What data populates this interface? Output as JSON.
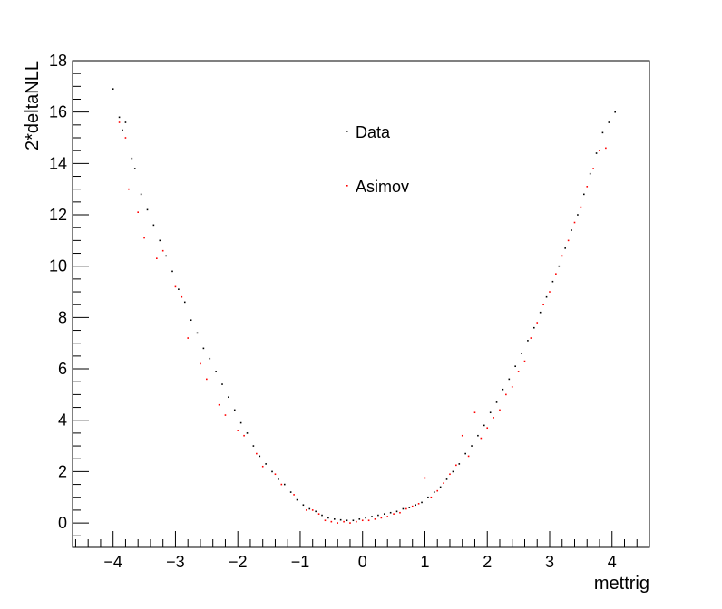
{
  "chart_data": {
    "type": "scatter",
    "title": "",
    "xlabel": "mettrig",
    "ylabel": "2*deltaNLL",
    "xlim": [
      -4.65,
      4.6
    ],
    "ylim": [
      -0.95,
      18
    ],
    "xticks": [
      -4,
      -3,
      -2,
      -1,
      0,
      1,
      2,
      3,
      4
    ],
    "xtick_labels": [
      "−4",
      "−3",
      "−2",
      "−1",
      "0",
      "1",
      "2",
      "3",
      "4"
    ],
    "yticks": [
      0,
      2,
      4,
      6,
      8,
      10,
      12,
      14,
      16,
      18
    ],
    "ytick_labels": [
      "0",
      "2",
      "4",
      "6",
      "8",
      "10",
      "12",
      "14",
      "16",
      "18"
    ],
    "grid": false,
    "legend_position": "top-center",
    "series": [
      {
        "name": "Data",
        "color": "#000000",
        "points": [
          [
            -4.0,
            16.9
          ],
          [
            -3.9,
            15.8
          ],
          [
            -3.85,
            15.3
          ],
          [
            -3.8,
            15.6
          ],
          [
            -3.7,
            14.2
          ],
          [
            -3.65,
            13.8
          ],
          [
            -3.55,
            12.8
          ],
          [
            -3.45,
            12.2
          ],
          [
            -3.35,
            11.6
          ],
          [
            -3.25,
            11.0
          ],
          [
            -3.15,
            10.4
          ],
          [
            -3.05,
            9.8
          ],
          [
            -2.95,
            9.1
          ],
          [
            -2.85,
            8.6
          ],
          [
            -2.75,
            7.9
          ],
          [
            -2.65,
            7.4
          ],
          [
            -2.55,
            6.8
          ],
          [
            -2.45,
            6.4
          ],
          [
            -2.35,
            5.9
          ],
          [
            -2.25,
            5.4
          ],
          [
            -2.15,
            4.9
          ],
          [
            -2.05,
            4.4
          ],
          [
            -1.95,
            3.9
          ],
          [
            -1.85,
            3.5
          ],
          [
            -1.75,
            3.0
          ],
          [
            -1.65,
            2.6
          ],
          [
            -1.55,
            2.3
          ],
          [
            -1.45,
            2.0
          ],
          [
            -1.35,
            1.7
          ],
          [
            -1.25,
            1.5
          ],
          [
            -1.15,
            1.2
          ],
          [
            -1.05,
            0.9
          ],
          [
            -0.95,
            0.7
          ],
          [
            -0.85,
            0.55
          ],
          [
            -0.75,
            0.45
          ],
          [
            -0.65,
            0.3
          ],
          [
            -0.55,
            0.2
          ],
          [
            -0.45,
            0.15
          ],
          [
            -0.35,
            0.12
          ],
          [
            -0.25,
            0.1
          ],
          [
            -0.15,
            0.1
          ],
          [
            -0.05,
            0.15
          ],
          [
            0.05,
            0.2
          ],
          [
            0.15,
            0.25
          ],
          [
            0.25,
            0.3
          ],
          [
            0.35,
            0.35
          ],
          [
            0.45,
            0.4
          ],
          [
            0.55,
            0.45
          ],
          [
            0.65,
            0.55
          ],
          [
            0.75,
            0.6
          ],
          [
            0.85,
            0.7
          ],
          [
            0.95,
            0.8
          ],
          [
            1.05,
            1.0
          ],
          [
            1.15,
            1.2
          ],
          [
            1.25,
            1.4
          ],
          [
            1.35,
            1.7
          ],
          [
            1.45,
            2.0
          ],
          [
            1.55,
            2.3
          ],
          [
            1.65,
            2.7
          ],
          [
            1.75,
            3.0
          ],
          [
            1.85,
            3.4
          ],
          [
            1.95,
            3.8
          ],
          [
            2.05,
            4.3
          ],
          [
            2.15,
            4.7
          ],
          [
            2.25,
            5.2
          ],
          [
            2.35,
            5.6
          ],
          [
            2.45,
            6.1
          ],
          [
            2.55,
            6.6
          ],
          [
            2.65,
            7.1
          ],
          [
            2.75,
            7.6
          ],
          [
            2.85,
            8.2
          ],
          [
            2.95,
            8.8
          ],
          [
            3.05,
            9.4
          ],
          [
            3.15,
            10.0
          ],
          [
            3.25,
            10.7
          ],
          [
            3.35,
            11.4
          ],
          [
            3.45,
            12.0
          ],
          [
            3.55,
            12.8
          ],
          [
            3.65,
            13.6
          ],
          [
            3.75,
            14.4
          ],
          [
            3.85,
            15.2
          ],
          [
            3.95,
            15.6
          ],
          [
            4.05,
            16.0
          ]
        ]
      },
      {
        "name": "Asimov",
        "color": "#ff0000",
        "points": [
          [
            -3.9,
            15.6
          ],
          [
            -3.8,
            15.0
          ],
          [
            -3.75,
            13.0
          ],
          [
            -3.6,
            12.1
          ],
          [
            -3.5,
            11.1
          ],
          [
            -3.3,
            10.3
          ],
          [
            -3.2,
            10.6
          ],
          [
            -3.0,
            9.2
          ],
          [
            -2.9,
            8.8
          ],
          [
            -2.8,
            7.2
          ],
          [
            -2.6,
            6.2
          ],
          [
            -2.5,
            5.6
          ],
          [
            -2.3,
            4.6
          ],
          [
            -2.2,
            4.2
          ],
          [
            -2.0,
            3.6
          ],
          [
            -1.9,
            3.4
          ],
          [
            -1.7,
            2.7
          ],
          [
            -1.6,
            2.2
          ],
          [
            -1.4,
            1.9
          ],
          [
            -1.3,
            1.5
          ],
          [
            -1.1,
            1.1
          ],
          [
            -0.9,
            0.5
          ],
          [
            -0.8,
            0.5
          ],
          [
            -0.7,
            0.35
          ],
          [
            -0.6,
            0.1
          ],
          [
            -0.5,
            0.05
          ],
          [
            -0.4,
            0.0
          ],
          [
            -0.3,
            0.05
          ],
          [
            -0.2,
            0.0
          ],
          [
            -0.1,
            0.05
          ],
          [
            0.0,
            0.1
          ],
          [
            0.1,
            0.1
          ],
          [
            0.2,
            0.15
          ],
          [
            0.3,
            0.2
          ],
          [
            0.4,
            0.25
          ],
          [
            0.5,
            0.35
          ],
          [
            0.6,
            0.4
          ],
          [
            0.7,
            0.55
          ],
          [
            0.8,
            0.65
          ],
          [
            0.9,
            0.75
          ],
          [
            1.0,
            1.75
          ],
          [
            1.1,
            1.0
          ],
          [
            1.2,
            1.25
          ],
          [
            1.3,
            1.55
          ],
          [
            1.4,
            1.9
          ],
          [
            1.5,
            2.25
          ],
          [
            1.6,
            3.4
          ],
          [
            1.7,
            2.6
          ],
          [
            1.8,
            4.3
          ],
          [
            1.9,
            3.3
          ],
          [
            2.0,
            3.7
          ],
          [
            2.1,
            4.1
          ],
          [
            2.2,
            4.4
          ],
          [
            2.3,
            5.0
          ],
          [
            2.4,
            5.3
          ],
          [
            2.5,
            5.9
          ],
          [
            2.6,
            6.3
          ],
          [
            2.7,
            7.2
          ],
          [
            2.8,
            7.8
          ],
          [
            2.9,
            8.5
          ],
          [
            3.0,
            9.0
          ],
          [
            3.1,
            9.7
          ],
          [
            3.2,
            10.4
          ],
          [
            3.3,
            11.0
          ],
          [
            3.4,
            11.7
          ],
          [
            3.5,
            12.3
          ],
          [
            3.6,
            13.1
          ],
          [
            3.7,
            13.8
          ],
          [
            3.8,
            14.5
          ],
          [
            3.9,
            14.6
          ]
        ]
      }
    ]
  }
}
